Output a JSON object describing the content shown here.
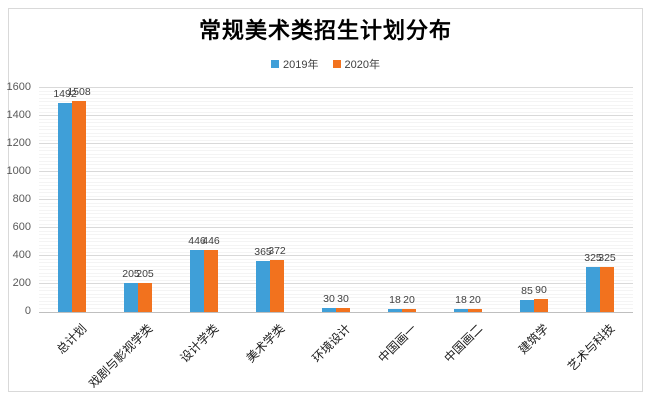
{
  "window": {
    "background": "#ffffff",
    "border_color": "#d9d9d9"
  },
  "chart_data": {
    "type": "bar",
    "title": "常规美术类招生计划分布",
    "categories": [
      "总计划",
      "戏剧与影视学类",
      "设计学类",
      "美术学类",
      "环境设计",
      "中国画一",
      "中国画二",
      "建筑学",
      "艺术与科技"
    ],
    "series": [
      {
        "name": "2019年",
        "color": "#3F9FD8",
        "values": [
          1492,
          205,
          446,
          365,
          30,
          18,
          18,
          85,
          325
        ]
      },
      {
        "name": "2020年",
        "color": "#F2721E",
        "values": [
          1508,
          205,
          446,
          372,
          30,
          20,
          20,
          90,
          325
        ]
      }
    ],
    "xlabel": "",
    "ylabel": "",
    "ylim": [
      0,
      1600
    ],
    "ytick_step": 200,
    "minor_tick_step": 25,
    "ytick_labels": [
      "0",
      "200",
      "400",
      "600",
      "800",
      "1000",
      "1200",
      "1400",
      "1600"
    ],
    "grid": true,
    "value_labels": true,
    "legend_position": "top",
    "colors": {
      "major_gridline": "#d9d9d9",
      "minor_gridline": "#f4f4f4",
      "axis_line": "#bfbfbf",
      "tick_text": "#595959",
      "value_text": "#404040"
    }
  }
}
